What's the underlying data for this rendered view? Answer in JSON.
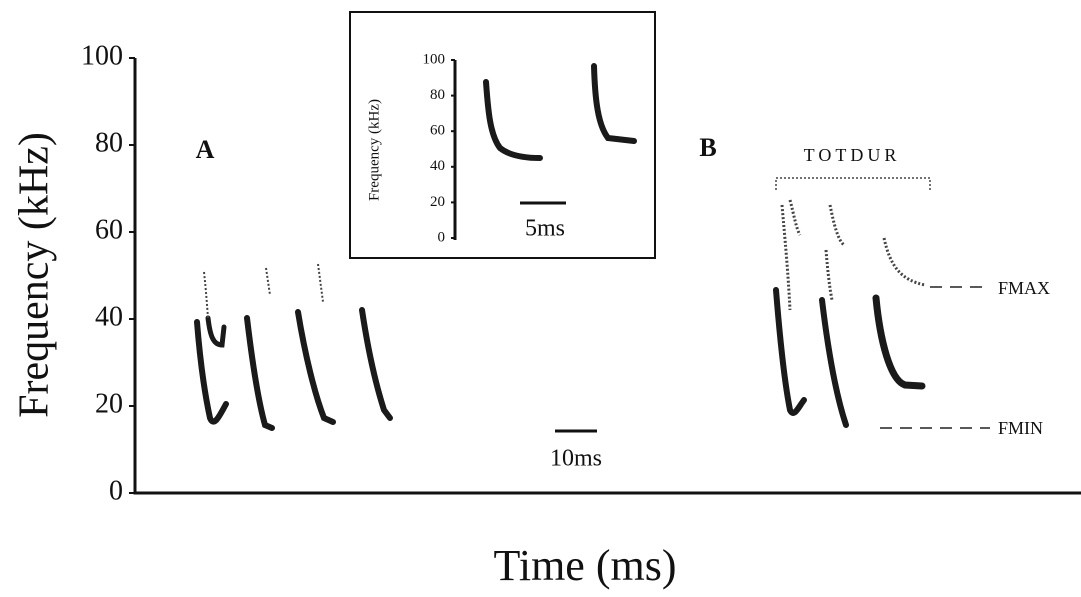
{
  "chart_data": {
    "type": "spectrogram",
    "ylabel": "Frequency (kHz)",
    "xlabel": "Time (ms)",
    "ylim": [
      0,
      100
    ],
    "yticks": [
      0,
      20,
      40,
      60,
      80,
      100
    ],
    "panel_labels": [
      "A",
      "B"
    ],
    "annotations": [
      "TOTDUR",
      "FMAX",
      "FMIN"
    ],
    "scale_bar": "10ms",
    "inset": {
      "ylabel": "Frequency (kHz)",
      "ylim": [
        0,
        100
      ],
      "yticks": [
        0,
        20,
        40,
        60,
        80,
        100
      ],
      "scale_bar": "5ms"
    }
  }
}
